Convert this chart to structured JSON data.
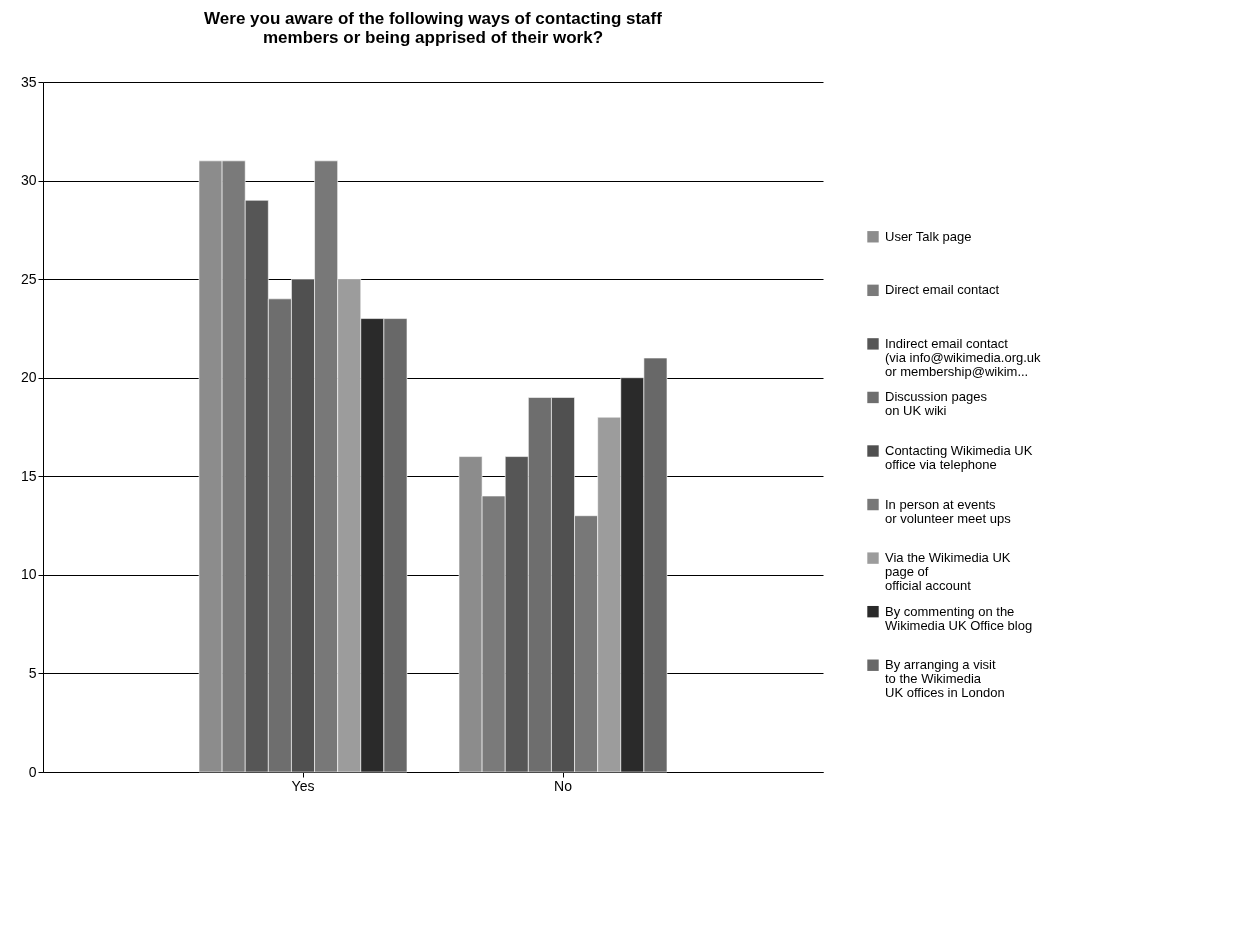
{
  "chart_data": {
    "type": "bar",
    "title": "Were you aware of the following ways of contacting staff\nmembers or being apprised of their work?",
    "categories": [
      "Yes",
      "No"
    ],
    "series": [
      {
        "name": "User Talk page",
        "color": "#8c8c8c",
        "values": [
          31,
          16
        ]
      },
      {
        "name": "Direct email contact",
        "color": "#7a7a7a",
        "values": [
          31,
          14
        ]
      },
      {
        "name": "Indirect email contact\n(via info@wikimedia.org.uk\nor membership@wikim...",
        "color": "#565656",
        "values": [
          29,
          16
        ]
      },
      {
        "name": "Discussion pages\non UK wiki",
        "color": "#6e6e6e",
        "values": [
          24,
          19
        ]
      },
      {
        "name": "Contacting Wikimedia UK\noffice via telephone",
        "color": "#505050",
        "values": [
          25,
          19
        ]
      },
      {
        "name": "In person at events\nor volunteer meet ups",
        "color": "#787878",
        "values": [
          31,
          13
        ]
      },
      {
        "name": "Via the Wikimedia UK\npage of\nofficial account",
        "color": "#9c9c9c",
        "values": [
          25,
          18
        ]
      },
      {
        "name": "By commenting on the\nWikimedia UK Office blog",
        "color": "#2a2a2a",
        "values": [
          23,
          20
        ]
      },
      {
        "name": "By arranging a visit\nto the Wikimedia\nUK offices in London",
        "color": "#686868",
        "values": [
          23,
          21
        ]
      }
    ],
    "ylim": [
      0,
      35
    ],
    "yticks": [
      0,
      5,
      10,
      15,
      20,
      25,
      30,
      35
    ],
    "grid": "y",
    "legend": "right"
  }
}
